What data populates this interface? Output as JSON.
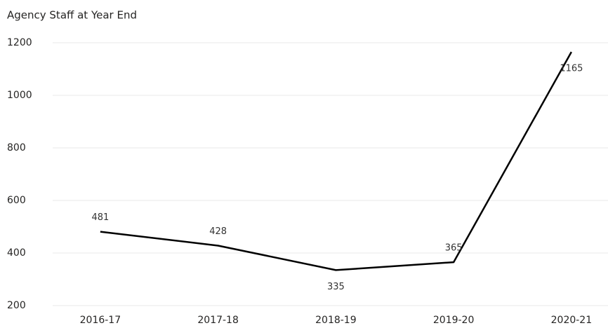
{
  "chart_data": {
    "type": "line",
    "title": "Agency Staff at Year End",
    "categories": [
      "2016-17",
      "2017-18",
      "2018-19",
      "2019-20",
      "2020-21"
    ],
    "values": [
      481,
      428,
      335,
      365,
      1165
    ],
    "color": "#000000",
    "ylim": [
      200,
      1200
    ],
    "yticks": [
      200,
      400,
      600,
      800,
      1000,
      1200
    ],
    "grid": true
  }
}
